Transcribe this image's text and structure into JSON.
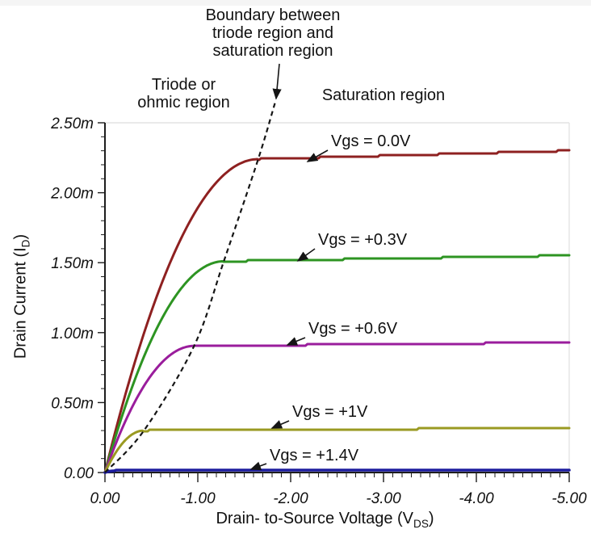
{
  "page": {
    "background": "#ffffff",
    "top_strip_color": "#f5f5f5"
  },
  "annotations": {
    "boundary_label": {
      "lines": [
        "Boundary between",
        "triode region and",
        "saturation region"
      ]
    },
    "triode_label": {
      "lines": [
        "Triode or",
        "ohmic region"
      ]
    },
    "saturation_label": {
      "lines": [
        "Saturation region"
      ]
    }
  },
  "chart_data": {
    "type": "line",
    "title": "",
    "xlabel": {
      "pre": "Drain- to-Source Voltage (V",
      "sub": "DS",
      "post": ")"
    },
    "ylabel": {
      "pre": "Drain Current (I",
      "sub": "D",
      "post": ")"
    },
    "x_unit": "V",
    "y_unit": "mA",
    "xlim_V": [
      0,
      -5
    ],
    "ylim_mA": [
      0,
      2.5
    ],
    "x_ticks_V": [
      0,
      -1,
      -2,
      -3,
      -4,
      -5
    ],
    "x_tick_labels": [
      "0.00",
      "-1.00",
      "-2.00",
      "-3.00",
      "-4.00",
      "-5.00"
    ],
    "y_ticks_mA": [
      0,
      0.5,
      1.0,
      1.5,
      2.0,
      2.5
    ],
    "y_tick_labels": [
      "0.00",
      "0.50m",
      "1.00m",
      "1.50m",
      "2.00m",
      "2.50m"
    ],
    "x_minor_divisions_per_major": 10,
    "y_minor_divisions_per_major": 5,
    "grid": "off",
    "axis_color": "#1d1d1d",
    "frame_color": "#e3e3e3",
    "text_color": "#111111",
    "series": [
      {
        "label": "Vgs = 0.0V",
        "vgs_V": 0.0,
        "color": "#8e2020",
        "i_sat_mA": 2.24,
        "v_knee_V": 1.65,
        "slope_mA_per_V": 0.018
      },
      {
        "label": "Vgs = +0.3V",
        "vgs_V": 0.3,
        "color": "#2d9422",
        "i_sat_mA": 1.51,
        "v_knee_V": 1.28,
        "slope_mA_per_V": 0.011
      },
      {
        "label": "Vgs = +0.6V",
        "vgs_V": 0.6,
        "color": "#9a1d9c",
        "i_sat_mA": 0.905,
        "v_knee_V": 0.96,
        "slope_mA_per_V": 0.006
      },
      {
        "label": "Vgs = +1V",
        "vgs_V": 1.0,
        "color": "#9a9a22",
        "i_sat_mA": 0.3,
        "v_knee_V": 0.42,
        "slope_mA_per_V": 0.004
      },
      {
        "label": "Vgs = +1.4V",
        "vgs_V": 1.4,
        "color": "#1c1c9e",
        "i_sat_mA": 0.012,
        "v_knee_V": 0.1,
        "slope_mA_per_V": 0.0
      }
    ],
    "boundary_curve": {
      "style": "dashed",
      "color": "#151515",
      "points_V_mA": [
        [
          0,
          0
        ],
        [
          0.42,
          0.3
        ],
        [
          0.96,
          0.905
        ],
        [
          1.28,
          1.51
        ],
        [
          1.65,
          2.24
        ],
        [
          1.83,
          2.64
        ]
      ]
    }
  }
}
